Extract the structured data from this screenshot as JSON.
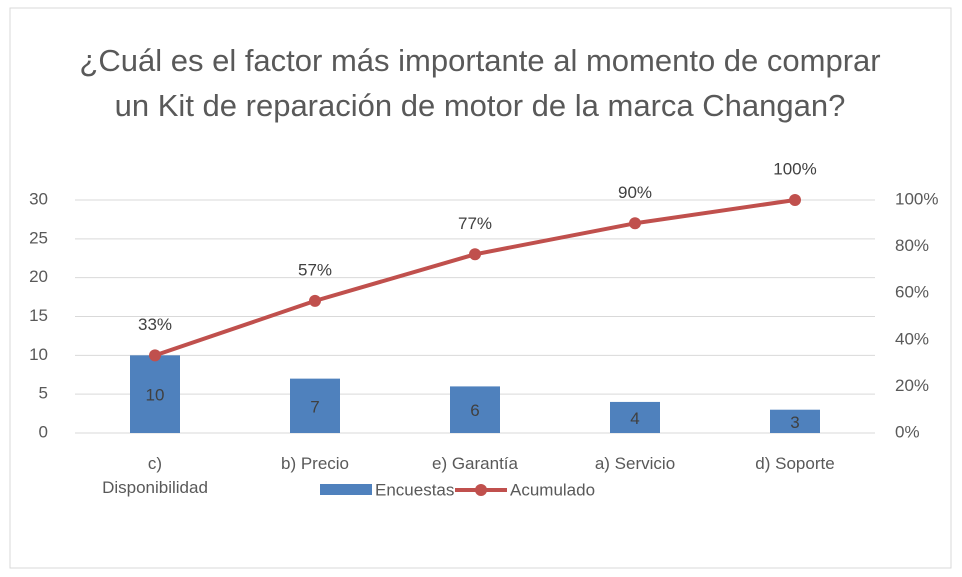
{
  "chart_data": {
    "type": "bar",
    "title": "¿Cuál es el factor más importante al momento de comprar un Kit de reparación de motor de la marca Changan?",
    "categories": [
      "c) Disponibilidad",
      "b) Precio",
      "e) Garantía",
      "a) Servicio",
      "d) Soporte"
    ],
    "series": [
      {
        "name": "Encuestas",
        "type": "bar",
        "color": "#4f81bd",
        "values": [
          10,
          7,
          6,
          4,
          3
        ],
        "value_labels": [
          "10",
          "7",
          "6",
          "4",
          "3"
        ]
      },
      {
        "name": "Acumulado",
        "type": "line",
        "axis": "y2",
        "color": "#c0504d",
        "values": [
          33.3,
          56.7,
          76.7,
          90,
          100
        ],
        "value_labels": [
          "33%",
          "57%",
          "77%",
          "90%",
          "100%"
        ]
      }
    ],
    "ylim": [
      0,
      30
    ],
    "yticks": [
      0,
      5,
      10,
      15,
      20,
      25,
      30
    ],
    "y2lim": [
      0,
      100
    ],
    "y2ticks": [
      {
        "value": 0,
        "label": "0%"
      },
      {
        "value": 20,
        "label": "20%"
      },
      {
        "value": 40,
        "label": "40%"
      },
      {
        "value": 60,
        "label": "60%"
      },
      {
        "value": 80,
        "label": "80%"
      },
      {
        "value": 100,
        "label": "100%"
      }
    ],
    "grid": true,
    "legend": "bottom"
  }
}
